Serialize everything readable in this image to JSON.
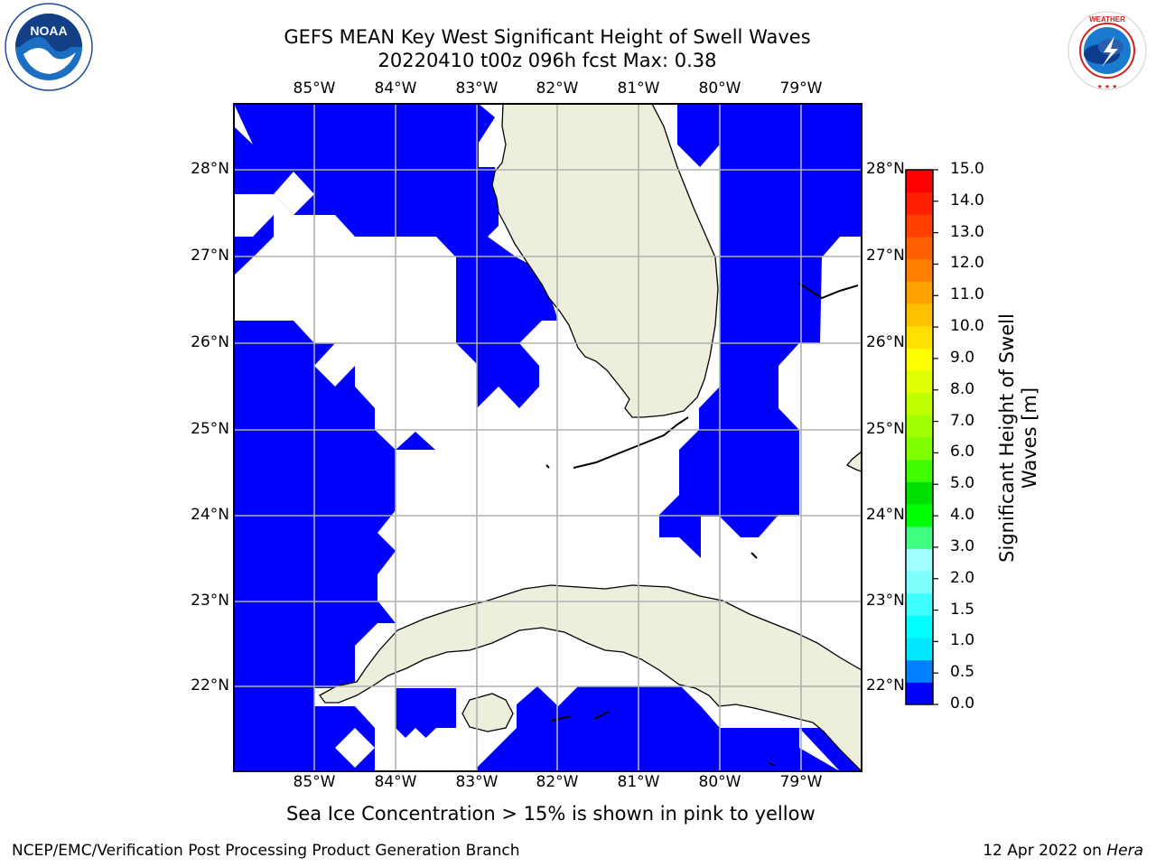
{
  "header": {
    "title_line1": "GEFS MEAN Key West Significant Height of Swell Waves",
    "title_line2": "20220410 t00z 096h fcst   Max: 0.38"
  },
  "logos": {
    "left": "noaa-logo",
    "right": "national-weather-service-logo"
  },
  "map": {
    "lon_ticks": [
      "85°W",
      "84°W",
      "83°W",
      "82°W",
      "81°W",
      "80°W",
      "79°W"
    ],
    "lat_ticks": [
      "28°N",
      "27°N",
      "26°N",
      "25°N",
      "24°N",
      "23°N",
      "22°N"
    ],
    "lon_range": [
      -86.0,
      -78.25
    ],
    "lat_range": [
      21.08,
      28.8
    ],
    "colors": {
      "water_low": "#0000ff",
      "land": "#eeeedc",
      "grid": "#b0b0b0",
      "coast": "#000000"
    }
  },
  "colorbar": {
    "label": "Significant Height of Swell Waves [m]",
    "ticks": [
      "15.0",
      "14.0",
      "13.0",
      "12.0",
      "11.0",
      "10.0",
      "9.0",
      "8.0",
      "7.0",
      "6.0",
      "5.0",
      "4.0",
      "3.0",
      "2.0",
      "1.5",
      "1.0",
      "0.5",
      "0.0"
    ],
    "colors": [
      "#0000ff",
      "#0080ff",
      "#00e8ff",
      "#00ffff",
      "#40ffff",
      "#80ffff",
      "#a0ffff",
      "#40ff80",
      "#00ff00",
      "#00e000",
      "#40ff00",
      "#80ff00",
      "#a0ff00",
      "#c0ff00",
      "#e0ff00",
      "#ffff00",
      "#ffe000",
      "#ffc000",
      "#ffa000",
      "#ff8000",
      "#ff6000",
      "#ff4000",
      "#ff2000",
      "#ff0000"
    ]
  },
  "subtitle": "Sea Ice Concentration > 15% is shown in pink to yellow",
  "footer": {
    "left": "NCEP/EMC/Verification Post Processing Product Generation Branch",
    "date": "12 Apr 2022 on ",
    "host": "Hera"
  }
}
